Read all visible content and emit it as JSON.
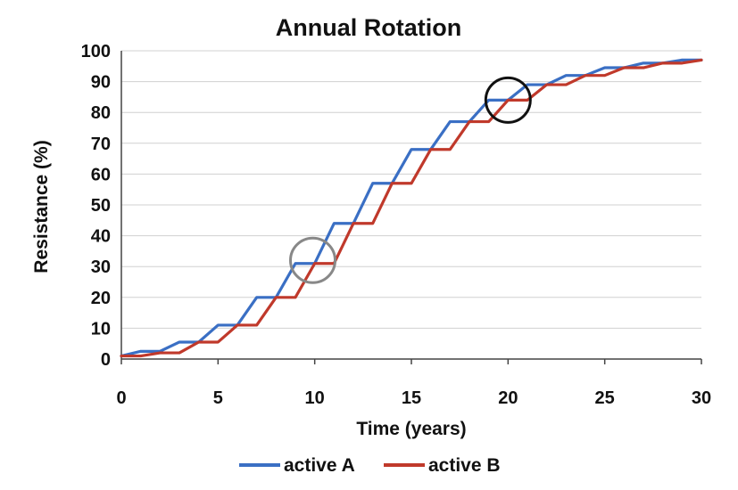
{
  "chart_data": {
    "type": "line",
    "title": "Annual Rotation",
    "xlabel": "Time (years)",
    "ylabel": "Resistance (%)",
    "xlim": [
      0,
      30
    ],
    "ylim": [
      0,
      100
    ],
    "x_ticks": [
      0,
      5,
      10,
      15,
      20,
      25,
      30
    ],
    "y_ticks": [
      0,
      10,
      20,
      30,
      40,
      50,
      60,
      70,
      80,
      90,
      100
    ],
    "grid": "horizontal",
    "legend_position": "bottom",
    "x": [
      0,
      1,
      2,
      3,
      4,
      5,
      6,
      7,
      8,
      9,
      10,
      11,
      12,
      13,
      14,
      15,
      16,
      17,
      18,
      19,
      20,
      21,
      22,
      23,
      24,
      25,
      26,
      27,
      28,
      29,
      30
    ],
    "series": [
      {
        "name": "active A",
        "color": "#3a6fc4",
        "values": [
          1,
          2.5,
          2.5,
          5.5,
          5.5,
          11,
          11,
          20,
          20,
          31,
          31,
          44,
          44,
          57,
          57,
          68,
          68,
          77,
          77,
          84,
          84,
          89,
          89,
          92,
          92,
          94.5,
          94.5,
          96,
          96,
          97,
          97
        ]
      },
      {
        "name": "active B",
        "color": "#c0392b",
        "values": [
          1,
          1,
          2,
          2,
          5.5,
          5.5,
          11,
          11,
          20,
          20,
          31,
          31,
          44,
          44,
          57,
          57,
          68,
          68,
          77,
          77,
          84,
          84,
          89,
          89,
          92,
          92,
          94.5,
          94.5,
          96,
          96,
          97
        ]
      }
    ],
    "annotations": [
      {
        "type": "circle",
        "x": 9.9,
        "y": 32,
        "color": "#888888"
      },
      {
        "type": "circle",
        "x": 20.0,
        "y": 84,
        "color": "#111111"
      }
    ]
  }
}
